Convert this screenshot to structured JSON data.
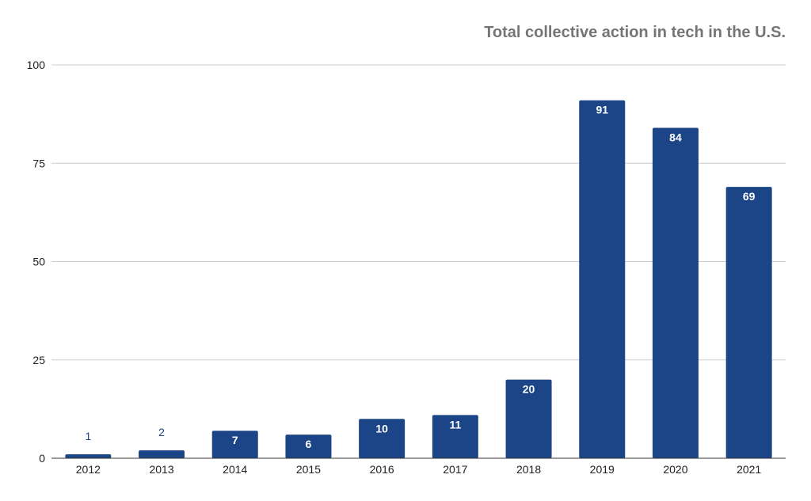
{
  "chart_data": {
    "type": "bar",
    "title": "Total collective action in tech in the U.S.",
    "xlabel": "",
    "ylabel": "",
    "categories": [
      "2012",
      "2013",
      "2014",
      "2015",
      "2016",
      "2017",
      "2018",
      "2019",
      "2020",
      "2021"
    ],
    "values": [
      1,
      2,
      7,
      6,
      10,
      11,
      20,
      91,
      84,
      69
    ],
    "ylim": [
      0,
      100
    ],
    "yticks": [
      "0",
      "25",
      "50",
      "75",
      "100"
    ],
    "grid": true,
    "legend": "none",
    "bar_color": "#1c4587",
    "label_inside_color": "#ffffff",
    "label_outside_color": "#1c4587"
  }
}
